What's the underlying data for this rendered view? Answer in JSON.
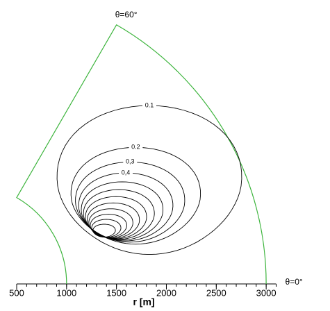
{
  "chart_data": {
    "type": "contour",
    "xlabel": "r [m]",
    "xlim": [
      500,
      3100
    ],
    "xticks": [
      500,
      1000,
      1500,
      2000,
      2500,
      3000
    ],
    "minor_tick_step": 100,
    "sector": {
      "r": [
        1000,
        3000
      ],
      "theta": [
        0,
        60
      ],
      "color": "#3cb43c"
    },
    "theta_labels": [
      "θ=60°",
      "θ=0°"
    ],
    "contour_color": "#000000",
    "levels": [
      {
        "value": 0.1,
        "label": "0.1"
      },
      {
        "value": 0.2,
        "label": "0.2"
      },
      {
        "value": 0.3,
        "label": "0,3"
      },
      {
        "value": 0.4,
        "label": "0,4"
      },
      0.5,
      0.6,
      0.7,
      0.8,
      0.9,
      1.0,
      1.1,
      1.2
    ]
  }
}
